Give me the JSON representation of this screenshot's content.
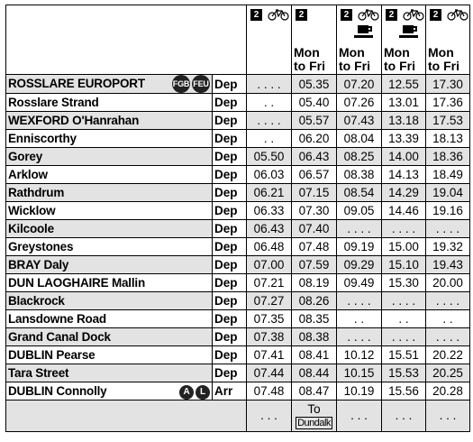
{
  "headers": [
    {
      "class_num": "2",
      "bike": true,
      "catering": false,
      "days_line1": "",
      "days_line2": ""
    },
    {
      "class_num": "2",
      "bike": false,
      "catering": false,
      "days_line1": "Mon",
      "days_line2": "to Fri"
    },
    {
      "class_num": "2",
      "bike": true,
      "catering": true,
      "days_line1": "Mon",
      "days_line2": "to Fri"
    },
    {
      "class_num": "2",
      "bike": true,
      "catering": true,
      "days_line1": "Mon",
      "days_line2": "to Fri"
    },
    {
      "class_num": "2",
      "bike": true,
      "catering": false,
      "days_line1": "Mon",
      "days_line2": "to Fri"
    }
  ],
  "stations": [
    {
      "name": "ROSSLARE EUROPORT",
      "badges": [
        "FGB",
        "FEU"
      ],
      "type": "Dep",
      "times": [
        ". . . .",
        "05.35",
        "07.20",
        "12.55",
        "17.30"
      ]
    },
    {
      "name": "Rosslare Strand",
      "type": "Dep",
      "times": [
        ". .",
        "05.40",
        "07.26",
        "13.01",
        "17.36"
      ]
    },
    {
      "name": "WEXFORD O'Hanrahan",
      "type": "Dep",
      "times": [
        ". . . .",
        "05.57",
        "07.43",
        "13.18",
        "17.53"
      ]
    },
    {
      "name": "Enniscorthy",
      "type": "Dep",
      "times": [
        ". .",
        "06.20",
        "08.04",
        "13.39",
        "18.13"
      ]
    },
    {
      "name": "Gorey",
      "type": "Dep",
      "times": [
        "05.50",
        "06.43",
        "08.25",
        "14.00",
        "18.36"
      ]
    },
    {
      "name": "Arklow",
      "type": "Dep",
      "times": [
        "06.03",
        "06.57",
        "08.38",
        "14.13",
        "18.49"
      ]
    },
    {
      "name": "Rathdrum",
      "type": "Dep",
      "times": [
        "06.21",
        "07.15",
        "08.54",
        "14.29",
        "19.04"
      ]
    },
    {
      "name": "Wicklow",
      "type": "Dep",
      "times": [
        "06.33",
        "07.30",
        "09.05",
        "14.46",
        "19.16"
      ]
    },
    {
      "name": "Kilcoole",
      "type": "Dep",
      "times": [
        "06.43",
        "07.40",
        ". . . .",
        ". . . .",
        ". . . ."
      ]
    },
    {
      "name": "Greystones",
      "type": "Dep",
      "times": [
        "06.48",
        "07.48",
        "09.19",
        "15.00",
        "19.32"
      ]
    },
    {
      "name": "BRAY Daly",
      "type": "Dep",
      "times": [
        "07.00",
        "07.59",
        "09.29",
        "15.10",
        "19.43"
      ]
    },
    {
      "name": "DUN LAOGHAIRE Mallin",
      "type": "Dep",
      "times": [
        "07.21",
        "08.19",
        "09.49",
        "15.30",
        "20.00"
      ]
    },
    {
      "name": "Blackrock",
      "type": "Dep",
      "times": [
        "07.27",
        "08.26",
        ". . . .",
        ". . . .",
        ". . . ."
      ]
    },
    {
      "name": "Lansdowne Road",
      "type": "Dep",
      "times": [
        "07.35",
        "08.35",
        ". .",
        ". .",
        ". ."
      ]
    },
    {
      "name": "Grand Canal Dock",
      "type": "Dep",
      "times": [
        "07.38",
        "08.38",
        ". . . .",
        ". . . .",
        ". . . ."
      ]
    },
    {
      "name": "DUBLIN Pearse",
      "type": "Dep",
      "times": [
        "07.41",
        "08.41",
        "10.12",
        "15.51",
        "20.22"
      ]
    },
    {
      "name": "Tara Street",
      "type": "Dep",
      "times": [
        "07.44",
        "08.44",
        "10.15",
        "15.53",
        "20.25"
      ]
    },
    {
      "name": "DUBLIN Connolly",
      "badges_round": [
        "A",
        "L"
      ],
      "type": "Arr",
      "times": [
        "07.48",
        "08.47",
        "10.19",
        "15.56",
        "20.28"
      ]
    }
  ],
  "footer": {
    "cells": [
      {
        "line1": ". . .",
        "line2": ""
      },
      {
        "line1": "To",
        "line2": "Dundalk"
      },
      {
        "line1": ". . .",
        "line2": ""
      },
      {
        "line1": ". . .",
        "line2": ""
      },
      {
        "line1": ". . .",
        "line2": ""
      }
    ]
  }
}
